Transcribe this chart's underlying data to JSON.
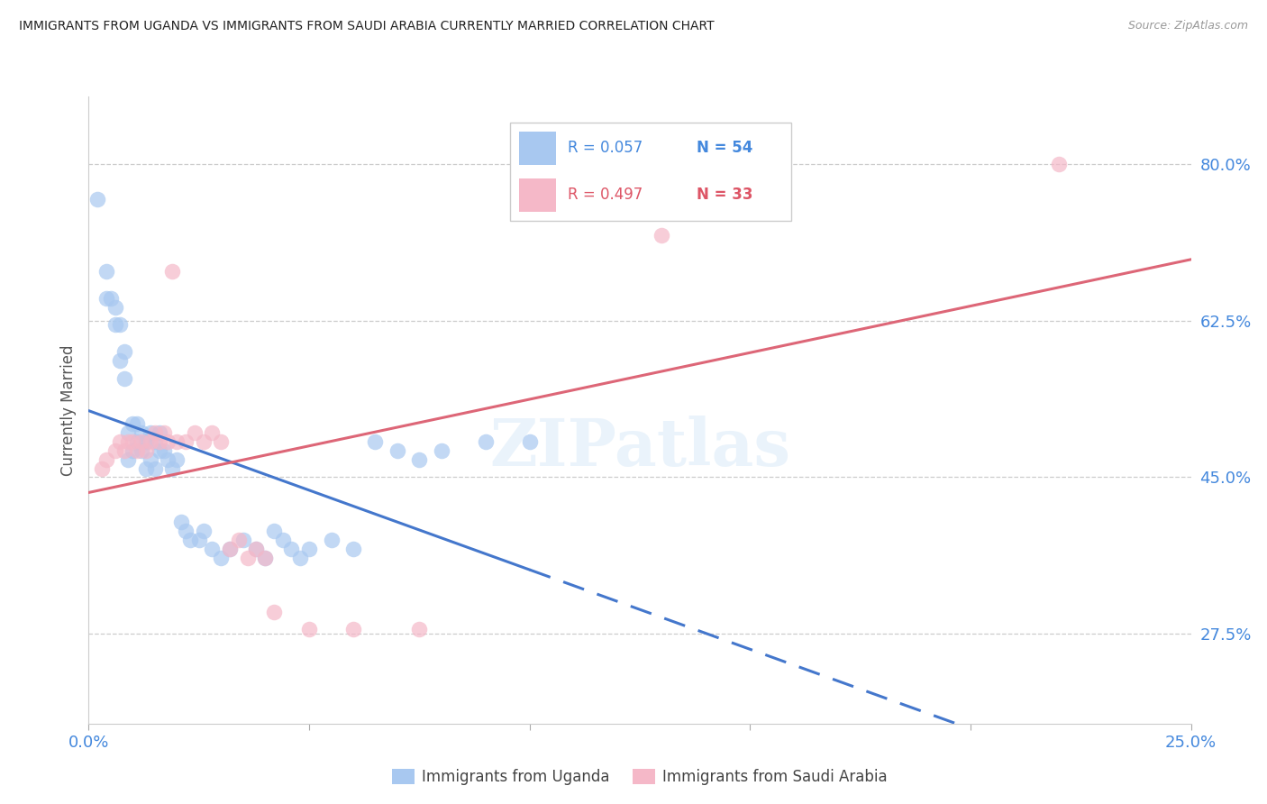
{
  "title": "IMMIGRANTS FROM UGANDA VS IMMIGRANTS FROM SAUDI ARABIA CURRENTLY MARRIED CORRELATION CHART",
  "source": "Source: ZipAtlas.com",
  "ylabel": "Currently Married",
  "ylabel_ticks": [
    "80.0%",
    "62.5%",
    "45.0%",
    "27.5%"
  ],
  "y_tick_vals": [
    0.8,
    0.625,
    0.45,
    0.275
  ],
  "xmin": 0.0,
  "xmax": 0.25,
  "ymin": 0.175,
  "ymax": 0.875,
  "legend_r1": "R = 0.057",
  "legend_n1": "N = 54",
  "legend_r2": "R = 0.497",
  "legend_n2": "N = 33",
  "color_blue": "#a8c8f0",
  "color_pink": "#f5b8c8",
  "color_blue_line": "#4477cc",
  "color_pink_line": "#dd6677",
  "color_blue_text": "#4488dd",
  "color_pink_text": "#dd5566",
  "label1": "Immigrants from Uganda",
  "label2": "Immigrants from Saudi Arabia",
  "uganda_x": [
    0.002,
    0.004,
    0.004,
    0.005,
    0.006,
    0.006,
    0.007,
    0.007,
    0.008,
    0.008,
    0.009,
    0.009,
    0.01,
    0.01,
    0.011,
    0.011,
    0.012,
    0.012,
    0.013,
    0.013,
    0.014,
    0.014,
    0.015,
    0.015,
    0.016,
    0.016,
    0.017,
    0.018,
    0.019,
    0.02,
    0.021,
    0.022,
    0.023,
    0.025,
    0.026,
    0.028,
    0.03,
    0.032,
    0.035,
    0.038,
    0.04,
    0.042,
    0.044,
    0.046,
    0.048,
    0.05,
    0.055,
    0.06,
    0.065,
    0.07,
    0.075,
    0.08,
    0.09,
    0.1
  ],
  "uganda_y": [
    0.76,
    0.68,
    0.65,
    0.65,
    0.62,
    0.64,
    0.62,
    0.58,
    0.56,
    0.59,
    0.47,
    0.5,
    0.48,
    0.51,
    0.49,
    0.51,
    0.48,
    0.5,
    0.46,
    0.49,
    0.47,
    0.5,
    0.46,
    0.49,
    0.48,
    0.5,
    0.48,
    0.47,
    0.46,
    0.47,
    0.4,
    0.39,
    0.38,
    0.38,
    0.39,
    0.37,
    0.36,
    0.37,
    0.38,
    0.37,
    0.36,
    0.39,
    0.38,
    0.37,
    0.36,
    0.37,
    0.38,
    0.37,
    0.49,
    0.48,
    0.47,
    0.48,
    0.49,
    0.49
  ],
  "saudi_x": [
    0.003,
    0.004,
    0.006,
    0.007,
    0.008,
    0.009,
    0.01,
    0.011,
    0.012,
    0.013,
    0.014,
    0.015,
    0.016,
    0.017,
    0.018,
    0.019,
    0.02,
    0.022,
    0.024,
    0.026,
    0.028,
    0.03,
    0.032,
    0.034,
    0.036,
    0.038,
    0.04,
    0.042,
    0.05,
    0.06,
    0.075,
    0.13,
    0.22
  ],
  "saudi_y": [
    0.46,
    0.47,
    0.48,
    0.49,
    0.48,
    0.49,
    0.49,
    0.48,
    0.49,
    0.48,
    0.49,
    0.5,
    0.49,
    0.5,
    0.49,
    0.68,
    0.49,
    0.49,
    0.5,
    0.49,
    0.5,
    0.49,
    0.37,
    0.38,
    0.36,
    0.37,
    0.36,
    0.3,
    0.28,
    0.28,
    0.28,
    0.72,
    0.8
  ]
}
